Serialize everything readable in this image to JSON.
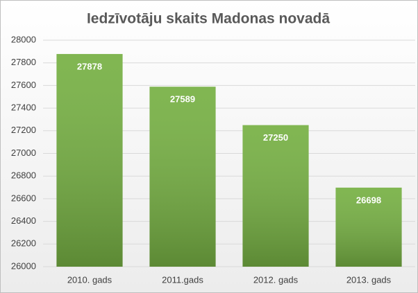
{
  "chart_data": {
    "type": "bar",
    "title": "Iedzīvotāju skaits Madonas novadā",
    "categories": [
      "2010. gads",
      "2011.gads",
      "2012. gads",
      "2013. gads"
    ],
    "values": [
      27878,
      27589,
      27250,
      26698
    ],
    "color": "#76b043",
    "ylim": [
      26000,
      28000
    ],
    "yticks": [
      26000,
      26200,
      26400,
      26600,
      26800,
      27000,
      27200,
      27400,
      27600,
      27800,
      28000
    ],
    "grid": true
  }
}
